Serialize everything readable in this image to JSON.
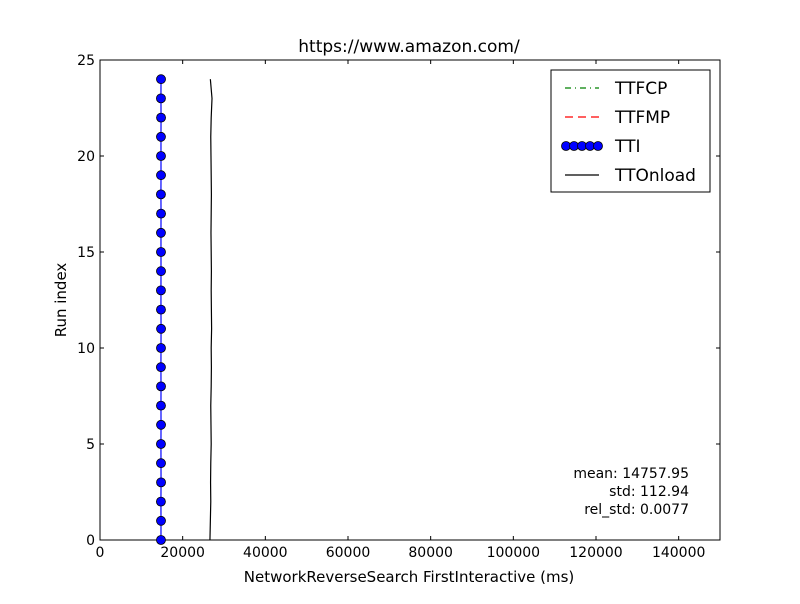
{
  "chart_data": {
    "type": "line",
    "title": "https://www.amazon.com/",
    "xlabel": "NetworkReverseSearch FirstInteractive (ms)",
    "ylabel": "Run index",
    "xlim": [
      0,
      150000
    ],
    "ylim": [
      0,
      25
    ],
    "x_ticks": [
      0,
      20000,
      40000,
      60000,
      80000,
      100000,
      120000,
      140000
    ],
    "y_ticks": [
      0,
      5,
      10,
      15,
      20,
      25
    ],
    "grid": false,
    "legend_position": "upper-right",
    "series": [
      {
        "name": "TTFCP",
        "style": "dash-dot",
        "color": "#008000",
        "marker": "none",
        "x": [],
        "y": []
      },
      {
        "name": "TTFMP",
        "style": "dashed",
        "color": "#ff0000",
        "marker": "none",
        "x": [],
        "y": []
      },
      {
        "name": "TTI",
        "style": "solid",
        "color": "#0000ff",
        "marker": "circle",
        "x": [
          14750,
          14760,
          14740,
          14770,
          14755,
          14745,
          14765,
          14750,
          14760,
          14740,
          14755,
          14770,
          14750,
          14745,
          14760,
          14755,
          14750,
          14765,
          14740,
          14760,
          14755,
          14750,
          14770,
          14745,
          14760
        ],
        "y": [
          0,
          1,
          2,
          3,
          4,
          5,
          6,
          7,
          8,
          9,
          10,
          11,
          12,
          13,
          14,
          15,
          16,
          17,
          18,
          19,
          20,
          21,
          22,
          23,
          24
        ]
      },
      {
        "name": "TTOnload",
        "style": "solid",
        "color": "#000000",
        "marker": "none",
        "x": [
          26600,
          26700,
          26800,
          26750,
          26800,
          26900,
          26850,
          26800,
          26900,
          26950,
          26900,
          27000,
          26950,
          26900,
          26950,
          26900,
          26850,
          26900,
          26950,
          26900,
          26850,
          26800,
          26900,
          27100,
          26700
        ],
        "y": [
          0,
          1,
          2,
          3,
          4,
          5,
          6,
          7,
          8,
          9,
          10,
          11,
          12,
          13,
          14,
          15,
          16,
          17,
          18,
          19,
          20,
          21,
          22,
          23,
          24
        ]
      }
    ],
    "annotations": [
      "mean: 14757.95",
      "std: 112.94",
      "rel_std: 0.0077"
    ]
  }
}
